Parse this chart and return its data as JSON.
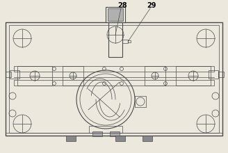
{
  "bg": "#ede8de",
  "lc": "#4a4a4a",
  "lw_thin": 0.5,
  "lw_med": 0.8,
  "lw_thick": 1.0,
  "label_28": "28",
  "label_29": "29",
  "figsize": [
    3.28,
    2.2
  ],
  "dpi": 100
}
